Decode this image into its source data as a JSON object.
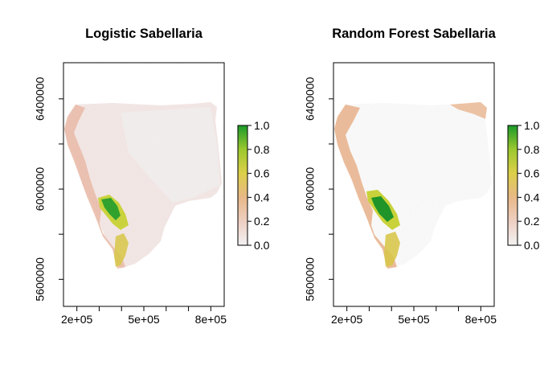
{
  "chart_data": [
    {
      "type": "heatmap",
      "title": "Logistic Sabellaria",
      "xlabel": "",
      "ylabel": "",
      "xlim": [
        140000,
        860000
      ],
      "ylim": [
        5480000,
        6560000
      ],
      "x_ticks": [
        200000,
        300000,
        400000,
        500000,
        600000,
        700000,
        800000
      ],
      "x_tick_labels": [
        "2e+05",
        "",
        "",
        "5e+05",
        "",
        "",
        "8e+05"
      ],
      "y_ticks": [
        5600000,
        5800000,
        6000000,
        6200000,
        6400000
      ],
      "y_tick_labels": [
        "5600000",
        "",
        "6000000",
        "",
        "6400000"
      ],
      "legend": {
        "range": [
          0.0,
          1.0
        ],
        "ticks": [
          "0.0",
          "0.2",
          "0.4",
          "0.6",
          "0.8",
          "1.0"
        ],
        "colors": [
          "#f2f2f2",
          "#eecfc2",
          "#e8b887",
          "#dccf49",
          "#9cc82e",
          "#1a9a2a"
        ]
      },
      "grid": false
    },
    {
      "type": "heatmap",
      "title": "Random Forest Sabellaria",
      "xlabel": "",
      "ylabel": "",
      "xlim": [
        140000,
        860000
      ],
      "ylim": [
        5480000,
        6560000
      ],
      "x_ticks": [
        200000,
        300000,
        400000,
        500000,
        600000,
        700000,
        800000
      ],
      "x_tick_labels": [
        "2e+05",
        "",
        "",
        "5e+05",
        "",
        "",
        "8e+05"
      ],
      "y_ticks": [
        5600000,
        5800000,
        6000000,
        6200000,
        6400000
      ],
      "y_tick_labels": [
        "5600000",
        "",
        "6000000",
        "",
        "6400000"
      ],
      "legend": {
        "range": [
          0.0,
          1.0
        ],
        "ticks": [
          "0.0",
          "0.2",
          "0.4",
          "0.6",
          "0.8",
          "1.0"
        ],
        "colors": [
          "#f2f2f2",
          "#eecfc2",
          "#e8b887",
          "#dccf49",
          "#9cc82e",
          "#1a9a2a"
        ]
      },
      "grid": false
    }
  ]
}
